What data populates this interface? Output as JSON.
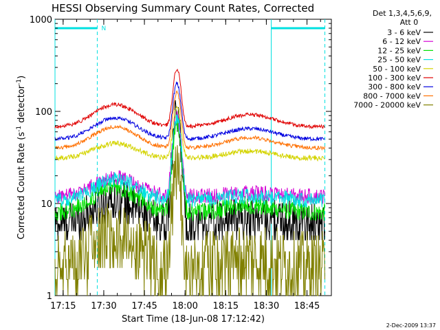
{
  "chart_data": {
    "type": "line",
    "title": "HESSI Observing Summary Count Rates, Corrected",
    "xlabel": "Start Time (18-Jun-08 17:12:42)",
    "ylabel_main": "Corrected Count Rate (s",
    "ylabel_sup1": "-1",
    "ylabel_mid": " detector",
    "ylabel_sup2": "-1",
    "ylabel_end": ")",
    "yscale": "log",
    "ylim": [
      1,
      1000
    ],
    "xlim": [
      17.2,
      18.9
    ],
    "x_ticks": [
      {
        "v": 17.25,
        "label": "17:15"
      },
      {
        "v": 17.5,
        "label": "17:30"
      },
      {
        "v": 17.75,
        "label": "17:45"
      },
      {
        "v": 18.0,
        "label": "18:00"
      },
      {
        "v": 18.25,
        "label": "18:15"
      },
      {
        "v": 18.5,
        "label": "18:30"
      },
      {
        "v": 18.75,
        "label": "18:45"
      }
    ],
    "y_ticks": [
      {
        "v": 1,
        "label": "1"
      },
      {
        "v": 10,
        "label": "10"
      },
      {
        "v": 100,
        "label": "100"
      },
      {
        "v": 1000,
        "label": "1000"
      }
    ],
    "legend_header": [
      "Det 1,3,4,5,6,9,",
      "Att 0"
    ],
    "legend_position": "right",
    "flare_marker": "N",
    "night_intervals": [
      [
        17.2,
        17.46
      ],
      [
        18.53,
        18.86
      ]
    ],
    "vlines_solid": [
      17.2,
      18.53
    ],
    "vlines_dashed": [
      17.46,
      18.86
    ],
    "flare_peak_time": 17.95,
    "series": [
      {
        "name": "3 - 6 keV",
        "color": "#000000",
        "baseline": 6,
        "hump1": 11,
        "hump2": 7,
        "peak": 85,
        "noise": 0.09
      },
      {
        "name": "6 - 12 keV",
        "color": "#d400d4",
        "baseline": 12,
        "hump1": 19,
        "hump2": 13,
        "peak": 90,
        "noise": 0.06
      },
      {
        "name": "12 - 25 keV",
        "color": "#00e000",
        "baseline": 8,
        "hump1": 15,
        "hump2": 9.5,
        "peak": 75,
        "noise": 0.07
      },
      {
        "name": "25 - 50 keV",
        "color": "#00e0e0",
        "baseline": 11,
        "hump1": 18,
        "hump2": 12,
        "peak": 85,
        "noise": 0.06
      },
      {
        "name": "50 - 100 keV",
        "color": "#d4d400",
        "baseline": 31,
        "hump1": 45,
        "hump2": 37,
        "peak": 110,
        "noise": 0.02
      },
      {
        "name": "100 - 300 keV",
        "color": "#e00000",
        "baseline": 68,
        "hump1": 118,
        "hump2": 92,
        "peak": 290,
        "noise": 0.015
      },
      {
        "name": "300 - 800 keV",
        "color": "#0000e0",
        "baseline": 50,
        "hump1": 85,
        "hump2": 65,
        "peak": 200,
        "noise": 0.015
      },
      {
        "name": "800 - 7000 keV",
        "color": "#ff7000",
        "baseline": 40,
        "hump1": 68,
        "hump2": 52,
        "peak": 160,
        "noise": 0.015
      },
      {
        "name": "7000 - 20000 keV",
        "color": "#808000",
        "baseline": 2,
        "hump1": 4.5,
        "hump2": 2.5,
        "peak": 20,
        "noise": 0.15
      }
    ]
  },
  "footer": {
    "date": "2-Dec-2009 13:37"
  }
}
